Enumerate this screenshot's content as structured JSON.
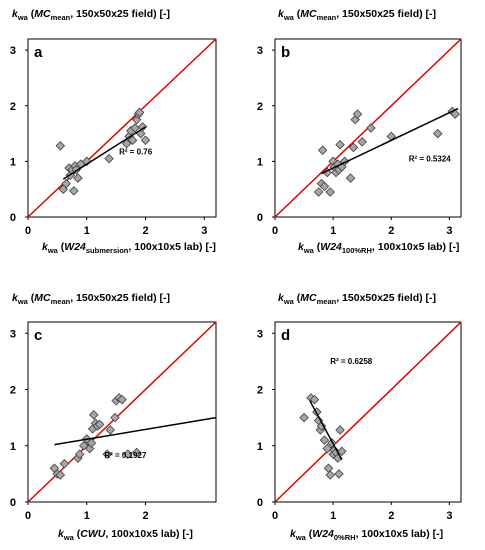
{
  "chart_data": [
    {
      "type": "scatter",
      "panel_letter": "a",
      "ylabel": {
        "k": "k",
        "k_sub": "wa",
        "open": " (",
        "mc": "MC",
        "mc_sub": "mean",
        "rest": ", 150x50x25 field) [-]"
      },
      "xlabel": {
        "k": "k",
        "k_sub": "wa",
        "open": " (",
        "name": "W24",
        "name_sub": "submersion",
        "rest": ", 100x10x5 lab) [-]"
      },
      "xlim": [
        0,
        3.2
      ],
      "ylim": [
        0,
        3.2
      ],
      "x_ticks": [
        "0",
        "1",
        "2",
        "3"
      ],
      "y_ticks": [
        "0",
        "1",
        "2",
        "3"
      ],
      "r2_label": "R² = 0.76",
      "points": [
        [
          0.55,
          1.28
        ],
        [
          0.6,
          0.5
        ],
        [
          0.65,
          0.6
        ],
        [
          0.7,
          0.88
        ],
        [
          0.72,
          0.75
        ],
        [
          0.75,
          0.85
        ],
        [
          0.78,
          0.47
        ],
        [
          0.8,
          0.92
        ],
        [
          0.82,
          0.85
        ],
        [
          0.85,
          0.7
        ],
        [
          0.9,
          0.95
        ],
        [
          1.0,
          1.0
        ],
        [
          1.38,
          1.05
        ],
        [
          1.68,
          1.32
        ],
        [
          1.72,
          1.45
        ],
        [
          1.75,
          1.55
        ],
        [
          1.78,
          1.38
        ],
        [
          1.82,
          1.6
        ],
        [
          1.85,
          1.75
        ],
        [
          1.88,
          1.85
        ],
        [
          1.9,
          1.88
        ],
        [
          1.92,
          1.5
        ],
        [
          1.95,
          1.62
        ],
        [
          2.0,
          1.38
        ]
      ],
      "trendline": [
        [
          0.6,
          0.68
        ],
        [
          2.0,
          1.62
        ]
      ],
      "identity": [
        [
          0,
          0
        ],
        [
          3.2,
          3.2
        ]
      ]
    },
    {
      "type": "scatter",
      "panel_letter": "b",
      "ylabel": {
        "k": "k",
        "k_sub": "wa",
        "open": " (",
        "mc": "MC",
        "mc_sub": "mean",
        "rest": ", 150x50x25 field) [-]"
      },
      "xlabel": {
        "k": "k",
        "k_sub": "wa",
        "open": " (",
        "name": "W24",
        "name_sub": "100%RH",
        "rest": ", 100x10x5 lab) [-]"
      },
      "xlim": [
        0,
        3.2
      ],
      "ylim": [
        0,
        3.2
      ],
      "x_ticks": [
        "0",
        "1",
        "2",
        "3"
      ],
      "y_ticks": [
        "0",
        "1",
        "2",
        "3"
      ],
      "r2_label": "R² = 0.5324",
      "points": [
        [
          0.75,
          0.45
        ],
        [
          0.8,
          0.6
        ],
        [
          0.82,
          1.2
        ],
        [
          0.85,
          0.55
        ],
        [
          0.9,
          0.8
        ],
        [
          0.95,
          0.45
        ],
        [
          1.0,
          1.0
        ],
        [
          1.02,
          0.9
        ],
        [
          1.05,
          0.8
        ],
        [
          1.08,
          0.95
        ],
        [
          1.1,
          0.85
        ],
        [
          1.12,
          1.3
        ],
        [
          1.15,
          0.9
        ],
        [
          1.2,
          1.0
        ],
        [
          1.3,
          0.7
        ],
        [
          1.35,
          1.25
        ],
        [
          1.38,
          1.75
        ],
        [
          1.42,
          1.85
        ],
        [
          1.5,
          1.35
        ],
        [
          1.65,
          1.6
        ],
        [
          2.0,
          1.45
        ],
        [
          2.8,
          1.5
        ],
        [
          3.05,
          1.9
        ],
        [
          3.1,
          1.85
        ]
      ],
      "trendline": [
        [
          0.8,
          0.78
        ],
        [
          3.15,
          1.95
        ]
      ],
      "identity": [
        [
          0,
          0
        ],
        [
          3.2,
          3.2
        ]
      ]
    },
    {
      "type": "scatter",
      "panel_letter": "c",
      "ylabel": {
        "k": "k",
        "k_sub": "wa",
        "open": " (",
        "mc": "MC",
        "mc_sub": "mean",
        "rest": ", 150x50x25 field) [-]"
      },
      "xlabel": {
        "k": "k",
        "k_sub": "wa",
        "open": " (",
        "name": "CWU",
        "name_sub": "",
        "rest": ", 100x10x5 lab) [-]"
      },
      "xlim": [
        0,
        3.2
      ],
      "ylim": [
        0,
        3.2
      ],
      "x_ticks": [
        "0",
        "1",
        "2"
      ],
      "y_ticks": [
        "0",
        "1",
        "2",
        "3"
      ],
      "r2_label": "R² = 0.1927",
      "points": [
        [
          0.45,
          0.6
        ],
        [
          0.5,
          0.5
        ],
        [
          0.55,
          0.48
        ],
        [
          0.62,
          0.68
        ],
        [
          0.85,
          0.78
        ],
        [
          0.88,
          0.85
        ],
        [
          0.95,
          1.0
        ],
        [
          1.0,
          1.12
        ],
        [
          1.05,
          0.95
        ],
        [
          1.08,
          1.05
        ],
        [
          1.1,
          1.3
        ],
        [
          1.12,
          1.55
        ],
        [
          1.15,
          1.4
        ],
        [
          1.18,
          1.35
        ],
        [
          1.22,
          1.38
        ],
        [
          1.35,
          0.85
        ],
        [
          1.4,
          1.28
        ],
        [
          1.48,
          1.5
        ],
        [
          1.5,
          1.8
        ],
        [
          1.55,
          1.85
        ],
        [
          1.6,
          1.82
        ],
        [
          1.7,
          0.85
        ],
        [
          1.85,
          0.88
        ]
      ],
      "trendline": [
        [
          0.45,
          1.02
        ],
        [
          3.2,
          1.5
        ]
      ],
      "identity": [
        [
          0,
          0
        ],
        [
          3.2,
          3.2
        ]
      ]
    },
    {
      "type": "scatter",
      "panel_letter": "d",
      "ylabel": {
        "k": "k",
        "k_sub": "wa",
        "open": " (",
        "mc": "MC",
        "mc_sub": "mean",
        "rest": ", 150x50x25 field) [-]"
      },
      "xlabel": {
        "k": "k",
        "k_sub": "wa",
        "open": " (",
        "name": "W24",
        "name_sub": "0%RH",
        "rest": ", 100x10x5 lab) [-]"
      },
      "xlim": [
        0,
        3.2
      ],
      "ylim": [
        0,
        3.2
      ],
      "x_ticks": [
        "0",
        "1",
        "2",
        "3"
      ],
      "y_ticks": [
        "0",
        "1",
        "2",
        "3"
      ],
      "r2_label": "R² = 0.6258",
      "points": [
        [
          0.5,
          1.5
        ],
        [
          0.62,
          1.85
        ],
        [
          0.68,
          1.82
        ],
        [
          0.72,
          1.6
        ],
        [
          0.75,
          1.45
        ],
        [
          0.78,
          1.28
        ],
        [
          0.8,
          1.35
        ],
        [
          0.85,
          1.1
        ],
        [
          0.9,
          0.95
        ],
        [
          0.92,
          0.6
        ],
        [
          0.95,
          0.48
        ],
        [
          0.98,
          1.05
        ],
        [
          1.0,
          0.85
        ],
        [
          1.02,
          0.92
        ],
        [
          1.05,
          0.88
        ],
        [
          1.08,
          0.78
        ],
        [
          1.12,
          1.28
        ],
        [
          1.15,
          0.9
        ],
        [
          1.1,
          0.5
        ]
      ],
      "trendline": [
        [
          0.6,
          1.8
        ],
        [
          1.15,
          0.75
        ]
      ],
      "identity": [
        [
          0,
          0
        ],
        [
          3.2,
          3.2
        ]
      ]
    }
  ],
  "colors": {
    "identity_line": "#e00000",
    "trendline": "#000000",
    "marker_fill": "#a6a6a6",
    "marker_stroke": "#404040",
    "axis": "#000000"
  }
}
